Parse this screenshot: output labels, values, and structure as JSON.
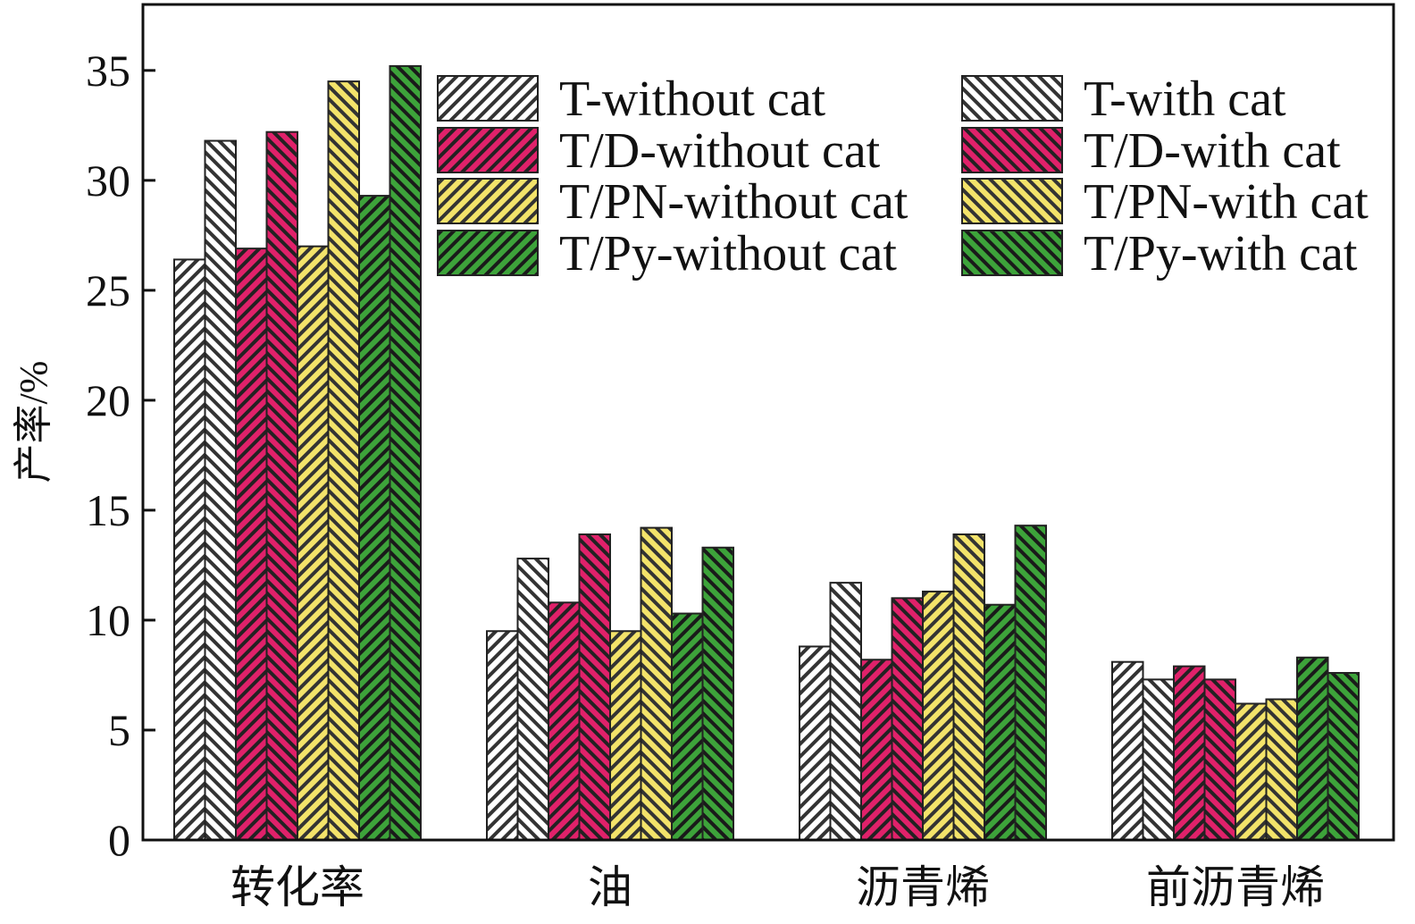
{
  "chart_data": {
    "type": "bar",
    "title": "",
    "xlabel": "",
    "ylabel": "产率/%",
    "ylim": [
      0,
      38
    ],
    "yticks": [
      0,
      5,
      10,
      15,
      20,
      25,
      30,
      35
    ],
    "categories": [
      "转化率",
      "油",
      "沥青烯",
      "前沥青烯"
    ],
    "legend_position": "top-right, inside plot, two columns",
    "series": [
      {
        "name": "T-without cat",
        "color": "#ffffff",
        "stripe": "#333333",
        "hatch": "right",
        "values": [
          26.4,
          9.5,
          8.8,
          8.1
        ]
      },
      {
        "name": "T-with cat",
        "color": "#ffffff",
        "stripe": "#333333",
        "hatch": "left",
        "values": [
          31.8,
          12.8,
          11.7,
          7.3
        ]
      },
      {
        "name": "T/D-without cat",
        "color": "#e0216a",
        "stripe": "#222222",
        "hatch": "right",
        "values": [
          26.9,
          10.8,
          8.2,
          7.9
        ]
      },
      {
        "name": "T/D-with cat",
        "color": "#e0216a",
        "stripe": "#222222",
        "hatch": "left",
        "values": [
          32.2,
          13.9,
          11.0,
          7.3
        ]
      },
      {
        "name": "T/PN-without cat",
        "color": "#f3e36a",
        "stripe": "#333333",
        "hatch": "right",
        "values": [
          27.0,
          9.5,
          11.3,
          6.2
        ]
      },
      {
        "name": "T/PN-with cat",
        "color": "#f3e36a",
        "stripe": "#333333",
        "hatch": "left",
        "values": [
          34.5,
          14.2,
          13.9,
          6.4
        ]
      },
      {
        "name": "T/Py-without cat",
        "color": "#3da33a",
        "stripe": "#1a1a1a",
        "hatch": "right",
        "values": [
          29.3,
          10.3,
          10.7,
          8.3
        ]
      },
      {
        "name": "T/Py-with cat",
        "color": "#3da33a",
        "stripe": "#1a1a1a",
        "hatch": "left",
        "values": [
          35.2,
          13.3,
          14.3,
          7.6
        ]
      }
    ]
  }
}
